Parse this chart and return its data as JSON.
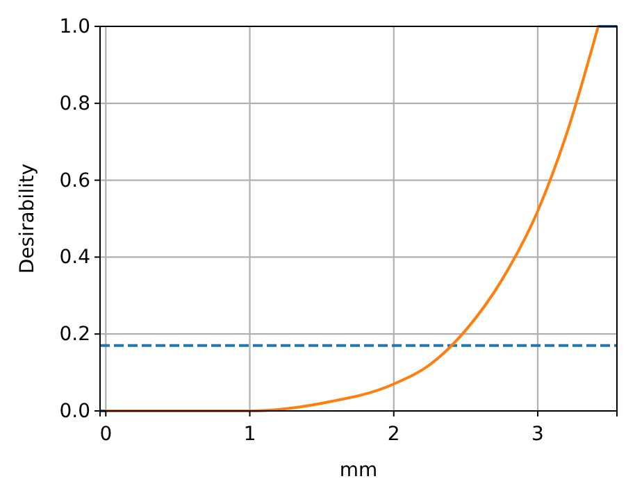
{
  "chart_data": {
    "type": "line",
    "xlabel": "mm",
    "ylabel": "Desirability",
    "xlim": [
      -0.04,
      3.55
    ],
    "ylim": [
      0,
      1
    ],
    "xticks": [
      0,
      1,
      2,
      3
    ],
    "yticks": [
      {
        "value": 0,
        "label": "0.0"
      },
      {
        "value": 0.2,
        "label": "0.2"
      },
      {
        "value": 0.4,
        "label": "0.4"
      },
      {
        "value": 0.6,
        "label": "0.6"
      },
      {
        "value": 0.8,
        "label": "0.8"
      },
      {
        "value": 1,
        "label": "1.0"
      }
    ],
    "grid": true,
    "line_style": "solid",
    "marker": "none",
    "series": [
      {
        "color": "#1f77b4",
        "x": [
          -0.04,
          0.1,
          2,
          3.42,
          3.55
        ],
        "values": [
          0,
          0,
          null,
          1,
          1
        ]
      },
      {
        "color": "#ff7f0e",
        "x": [
          0,
          0.5,
          1,
          1.5,
          2,
          2.25,
          2.5,
          2.75,
          3,
          3.2,
          3.42
        ],
        "values": [
          0,
          0,
          0,
          0.02,
          0.07,
          0.12,
          0.21,
          0.34,
          0.52,
          0.72,
          1.0
        ]
      }
    ],
    "ref_lines": [
      {
        "axis": "y",
        "value": 0.17,
        "label": null,
        "color": "#1f77b4",
        "line_style": "dashed"
      }
    ]
  }
}
